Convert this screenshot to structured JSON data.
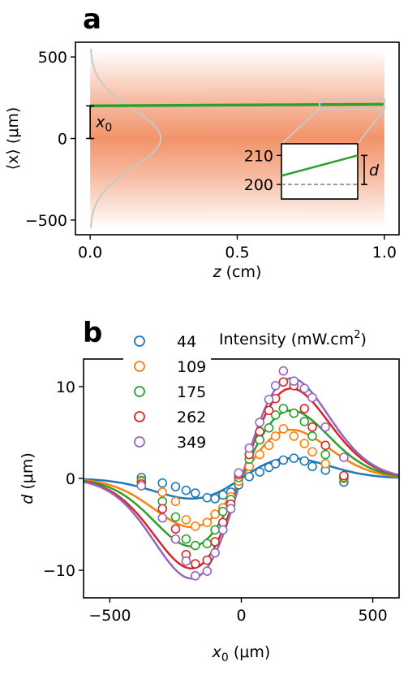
{
  "chart_data": [
    {
      "panel": "a",
      "type": "line",
      "xlabel_symbol": "z",
      "xlabel_unit": " (cm)",
      "ylabel": "⟨x⟩ (μm)",
      "xlim": [
        -0.05,
        1.05
      ],
      "ylim": [
        -590,
        590
      ],
      "xticks": [
        "0.0",
        "0.5",
        "1.0"
      ],
      "xtick_values": [
        0.0,
        0.5,
        1.0
      ],
      "yticks": [
        "500",
        "0",
        "−500"
      ],
      "ytick_values": [
        500,
        0,
        -500
      ],
      "beam_profile": {
        "z_start": 0.0,
        "z_end": 1.0,
        "y_max": 550,
        "color": "#f08050"
      },
      "trajectory": {
        "x": [
          0.0,
          1.0
        ],
        "y": [
          200,
          210
        ],
        "color": "#2ca02c"
      },
      "offset_label": "x",
      "offset_label_subscript": "0",
      "offset_value": 200,
      "inset": {
        "yticks": [
          "210",
          "200"
        ],
        "ytick_values": [
          210,
          200
        ],
        "baseline": 200,
        "line_start": 203,
        "line_end": 210,
        "d_label": "d"
      }
    },
    {
      "panel": "b",
      "type": "line",
      "xlabel_symbol": "x",
      "xlabel_sub": "0",
      "xlabel_unit": " (μm)",
      "ylabel_symbol": "d",
      "ylabel_unit": " (μm)",
      "xlim": [
        -600,
        600
      ],
      "ylim": [
        -13,
        13
      ],
      "xticks": [
        "−500",
        "0",
        "500"
      ],
      "xtick_values": [
        -500,
        0,
        500
      ],
      "yticks": [
        "10",
        "0",
        "−10"
      ],
      "ytick_values": [
        10,
        0,
        -10
      ],
      "legend_title": "Intensity (mW.cm",
      "legend_title_sup": "2",
      "legend_title_end": ")",
      "legend_placement": "top-left",
      "series": [
        {
          "name": "44",
          "color": "#1f77b4",
          "points_x": [
            -380,
            -300,
            -250,
            -210,
            -175,
            -130,
            -100,
            -70,
            -40,
            -10,
            30,
            70,
            105,
            130,
            160,
            200,
            240,
            270,
            320,
            390
          ],
          "points_y": [
            0.1,
            -0.5,
            -0.9,
            -1.3,
            -1.6,
            -2.1,
            -2.2,
            -1.8,
            -1.5,
            -0.7,
            0.2,
            0.7,
            1.2,
            1.6,
            2.0,
            2.2,
            1.9,
            1.3,
            0.9,
            -0.4
          ],
          "amp": 2.2
        },
        {
          "name": "109",
          "color": "#ff7f0e",
          "points_x": [
            -380,
            -300,
            -250,
            -210,
            -175,
            -130,
            -100,
            -70,
            -40,
            -10,
            30,
            70,
            105,
            130,
            160,
            200,
            240,
            270,
            320,
            390
          ],
          "points_y": [
            -0.2,
            -1.5,
            -2.5,
            -4.5,
            -5.2,
            -4.8,
            -3.9,
            -3.2,
            -2.0,
            -0.3,
            1.3,
            2.6,
            3.6,
            4.6,
            5.4,
            4.6,
            3.8,
            2.9,
            1.6,
            0.0
          ],
          "amp": 5.3
        },
        {
          "name": "175",
          "color": "#2ca02c",
          "points_x": [
            -380,
            -300,
            -250,
            -210,
            -175,
            -130,
            -100,
            -70,
            -40,
            -10,
            30,
            70,
            105,
            130,
            160,
            200,
            240,
            270,
            320,
            390
          ],
          "points_y": [
            -0.3,
            -2.5,
            -4.2,
            -6.6,
            -7.3,
            -7.1,
            -5.6,
            -3.6,
            -2.3,
            0.1,
            2.1,
            4.2,
            5.5,
            6.9,
            7.6,
            7.1,
            6.2,
            4.6,
            2.6,
            0.1
          ],
          "amp": 7.4
        },
        {
          "name": "262",
          "color": "#d62728",
          "points_x": [
            -380,
            -300,
            -250,
            -210,
            -175,
            -130,
            -100,
            -70,
            -40,
            -10,
            30,
            70,
            105,
            130,
            160,
            200,
            240,
            270,
            320,
            390
          ],
          "points_y": [
            -0.6,
            -3.3,
            -5.5,
            -8.3,
            -9.3,
            -8.9,
            -6.9,
            -4.8,
            -2.8,
            0.4,
            2.6,
            5.1,
            7.4,
            8.7,
            10.5,
            10.1,
            7.6,
            5.6,
            3.6,
            0.3
          ],
          "amp": 9.8
        },
        {
          "name": "349",
          "color": "#9467bd",
          "points_x": [
            -380,
            -300,
            -250,
            -210,
            -175,
            -130,
            -100,
            -70,
            -40,
            -10,
            30,
            70,
            105,
            130,
            160,
            200,
            240,
            270,
            320,
            390
          ],
          "points_y": [
            -0.8,
            -4.3,
            -6.6,
            -9.0,
            -10.6,
            -10.1,
            -8.1,
            -5.6,
            -3.3,
            0.6,
            3.3,
            6.1,
            8.6,
            10.1,
            11.7,
            10.6,
            9.8,
            8.8,
            5.6,
            2.3
          ],
          "amp": 10.9
        }
      ]
    }
  ]
}
